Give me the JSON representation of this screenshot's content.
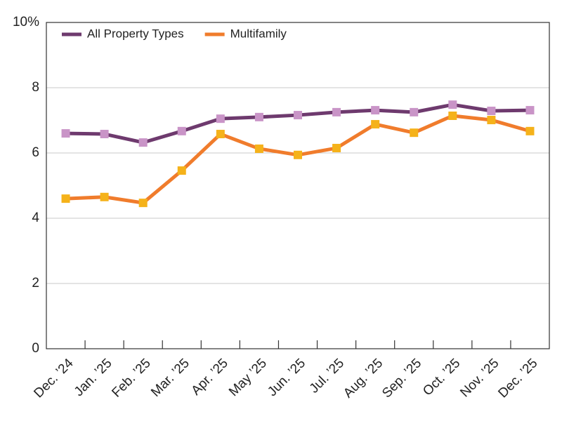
{
  "chart_data": {
    "type": "line",
    "categories": [
      "Dec. ’24",
      "Jan. ’25",
      "Feb. ’25",
      "Mar. ’25",
      "Apr. ’25",
      "May ’25",
      "Jun. ’25",
      "Jul. ’25",
      "Aug. ’25",
      "Sep. ’25",
      "Oct. ’25",
      "Nov. ’25",
      "Dec. ’25"
    ],
    "series": [
      {
        "name": "All Property Types",
        "color": "#6e3a6e",
        "marker_color": "#c994c7",
        "values": [
          6.6,
          6.58,
          6.32,
          6.67,
          7.05,
          7.1,
          7.16,
          7.25,
          7.31,
          7.25,
          7.48,
          7.29,
          7.31
        ]
      },
      {
        "name": "Multifamily",
        "color": "#f07c2c",
        "marker_color": "#f5b21a",
        "values": [
          4.6,
          4.65,
          4.47,
          5.46,
          6.58,
          6.13,
          5.94,
          6.15,
          6.88,
          6.62,
          7.14,
          7.01,
          6.67
        ]
      }
    ],
    "ylim": [
      0,
      10
    ],
    "yticks": [
      0,
      2,
      4,
      6,
      8,
      {
        "value": 10,
        "label": "10%"
      }
    ],
    "grid": true,
    "legend": "top-left"
  }
}
